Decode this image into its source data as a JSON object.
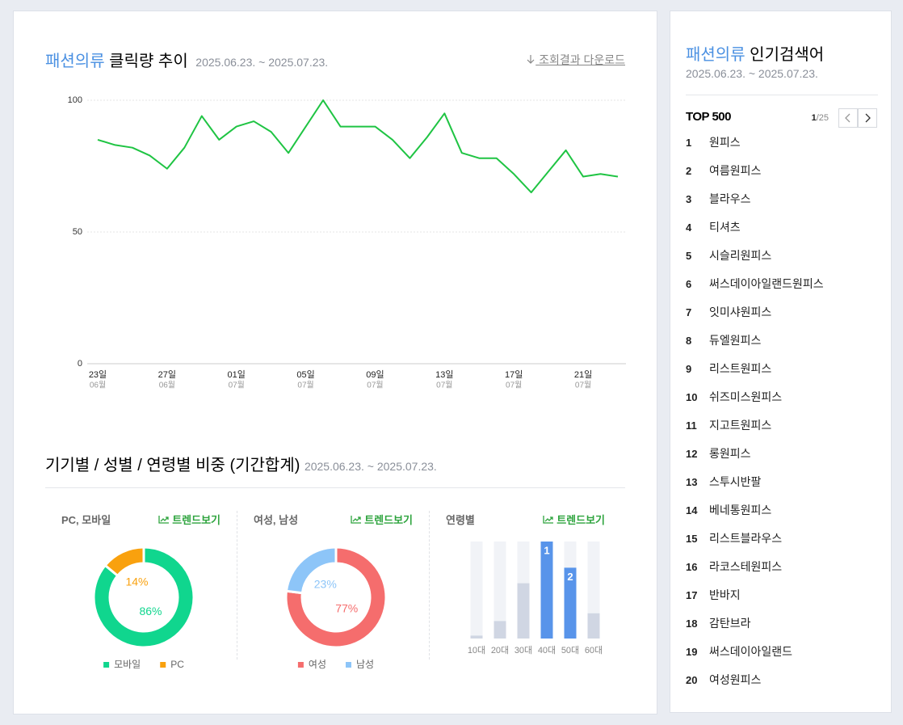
{
  "header": {
    "title_highlight": "패션의류",
    "title": "클릭량 추이",
    "date_range": "2025.06.23. ~ 2025.07.23.",
    "download": "조회결과 다운로드"
  },
  "section": {
    "title": "기기별 / 성별 / 연령별 비중 (기간합계)",
    "date_range": "2025.06.23. ~ 2025.07.23."
  },
  "chart_data": [
    {
      "type": "line",
      "categories": [
        "23일",
        null,
        null,
        null,
        "27일",
        null,
        null,
        null,
        "01일",
        null,
        null,
        null,
        "05일",
        null,
        null,
        null,
        "09일",
        null,
        null,
        null,
        "13일",
        null,
        null,
        null,
        "17일",
        null,
        null,
        null,
        "21일",
        null,
        null
      ],
      "category_months": [
        "06월",
        null,
        null,
        null,
        "06월",
        null,
        null,
        null,
        "07월",
        null,
        null,
        null,
        "07월",
        null,
        null,
        null,
        "07월",
        null,
        null,
        null,
        "07월",
        null,
        null,
        null,
        "07월",
        null,
        null,
        null,
        "07월",
        null,
        null
      ],
      "values": [
        85,
        83,
        82,
        79,
        74,
        82,
        94,
        85,
        90,
        92,
        88,
        80,
        90,
        100,
        90,
        90,
        90,
        85,
        78,
        86,
        95,
        80,
        78,
        78,
        72,
        65,
        73,
        81,
        71,
        72,
        71
      ],
      "color": "#1fc443",
      "ylim": [
        0,
        100
      ],
      "yticks": [
        0,
        50,
        100
      ],
      "grid": true
    },
    {
      "type": "donut",
      "title": "PC, 모바일",
      "link": "트렌드보기",
      "categories": [
        "모바일",
        "PC"
      ],
      "values": [
        86,
        14
      ],
      "value_labels": [
        "86%",
        "14%"
      ],
      "colors": [
        "#10d68e",
        "#f9a10e"
      ]
    },
    {
      "type": "donut",
      "title": "여성, 남성",
      "link": "트렌드보기",
      "categories": [
        "여성",
        "남성"
      ],
      "values": [
        77,
        23
      ],
      "value_labels": [
        "77%",
        "23%"
      ],
      "colors": [
        "#f56d6d",
        "#8dc5f8"
      ]
    },
    {
      "type": "bar",
      "title": "연령별",
      "link": "트렌드보기",
      "categories": [
        "10대",
        "20대",
        "30대",
        "40대",
        "50대",
        "60대"
      ],
      "values": [
        3,
        18,
        57,
        100,
        73,
        26
      ],
      "ranks": [
        null,
        null,
        null,
        1,
        2,
        null
      ],
      "ylim": [
        0,
        100
      ],
      "color": "#d0d6e3",
      "highlight_color": "#5894ea"
    }
  ],
  "ranking": {
    "title_highlight": "패션의류",
    "title": "인기검색어",
    "date_range": "2025.06.23. ~ 2025.07.23.",
    "top_label": "TOP 500",
    "page": 1,
    "page_total_label": "/25",
    "items": [
      {
        "rank": 1,
        "keyword": "원피스"
      },
      {
        "rank": 2,
        "keyword": "여름원피스"
      },
      {
        "rank": 3,
        "keyword": "블라우스"
      },
      {
        "rank": 4,
        "keyword": "티셔츠"
      },
      {
        "rank": 5,
        "keyword": "시슬리원피스"
      },
      {
        "rank": 6,
        "keyword": "써스데이아일랜드원피스"
      },
      {
        "rank": 7,
        "keyword": "잇미샤원피스"
      },
      {
        "rank": 8,
        "keyword": "듀엘원피스"
      },
      {
        "rank": 9,
        "keyword": "리스트원피스"
      },
      {
        "rank": 10,
        "keyword": "쉬즈미스원피스"
      },
      {
        "rank": 11,
        "keyword": "지고트원피스"
      },
      {
        "rank": 12,
        "keyword": "롱원피스"
      },
      {
        "rank": 13,
        "keyword": "스투시반팔"
      },
      {
        "rank": 14,
        "keyword": "베네통원피스"
      },
      {
        "rank": 15,
        "keyword": "리스트블라우스"
      },
      {
        "rank": 16,
        "keyword": "라코스테원피스"
      },
      {
        "rank": 17,
        "keyword": "반바지"
      },
      {
        "rank": 18,
        "keyword": "감탄브라"
      },
      {
        "rank": 19,
        "keyword": "써스데이아일랜드"
      },
      {
        "rank": 20,
        "keyword": "여성원피스"
      }
    ]
  }
}
